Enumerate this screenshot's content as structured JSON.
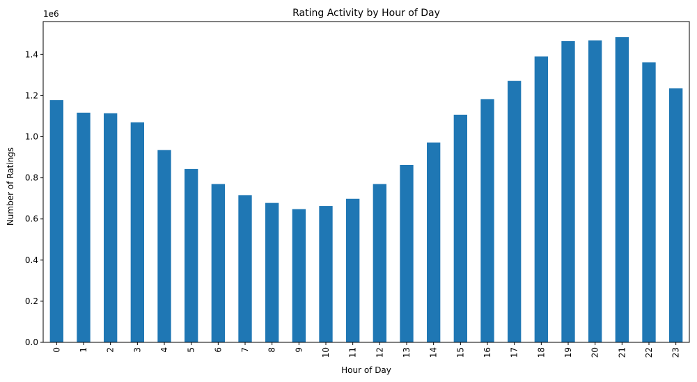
{
  "chart_data": {
    "type": "bar",
    "title": "Rating Activity by Hour of Day",
    "xlabel": "Hour of Day",
    "ylabel": "Number of Ratings",
    "offset_label": "1e6",
    "categories": [
      "0",
      "1",
      "2",
      "3",
      "4",
      "5",
      "6",
      "7",
      "8",
      "9",
      "10",
      "11",
      "12",
      "13",
      "14",
      "15",
      "16",
      "17",
      "18",
      "19",
      "20",
      "21",
      "22",
      "23"
    ],
    "values": [
      1178000,
      1117000,
      1114000,
      1070000,
      935000,
      843000,
      770000,
      716000,
      678000,
      648000,
      663000,
      698000,
      770000,
      863000,
      972000,
      1107000,
      1183000,
      1272000,
      1390000,
      1465000,
      1468000,
      1485000,
      1362000,
      1235000
    ],
    "yticks": [
      0,
      200000,
      400000,
      600000,
      800000,
      1000000,
      1200000,
      1400000
    ],
    "ytick_labels": [
      "0.0",
      "0.2",
      "0.4",
      "0.6",
      "0.8",
      "1.0",
      "1.2",
      "1.4"
    ],
    "ylim": [
      0,
      1560000
    ],
    "grid": false,
    "legend": "none",
    "bar_color": "#1f77b4"
  }
}
